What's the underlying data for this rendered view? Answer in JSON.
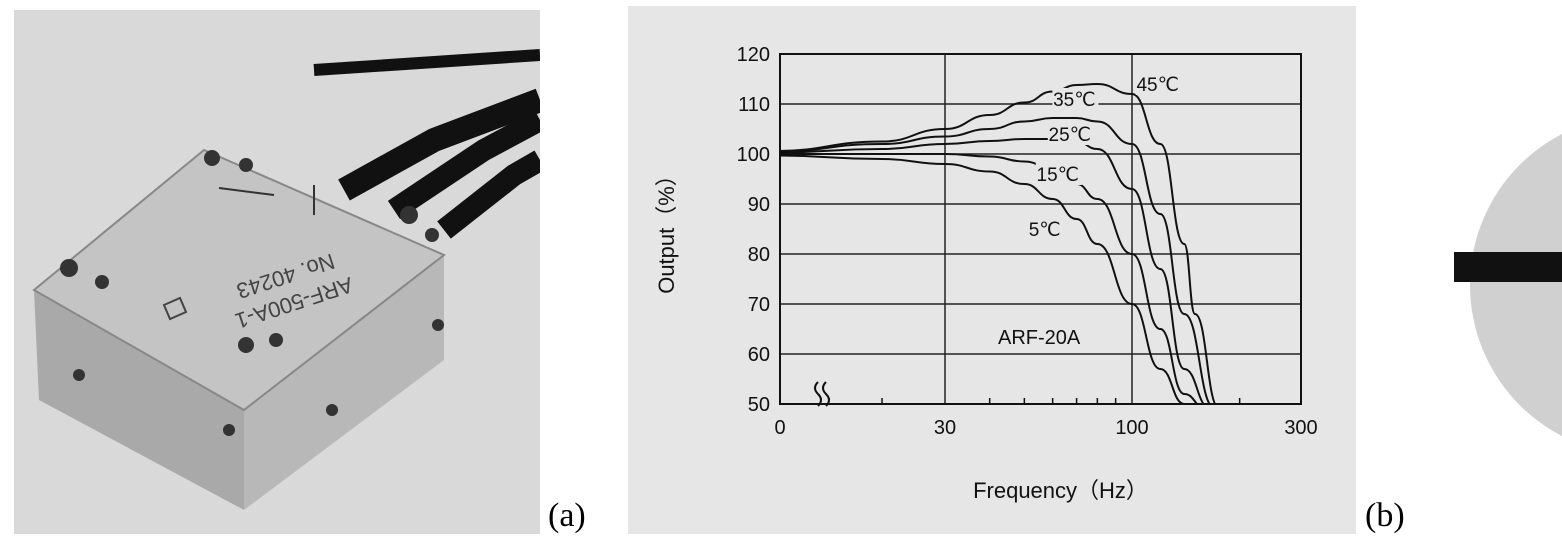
{
  "panels": {
    "a": {
      "label": "(a)",
      "device_text": [
        "ARF-500A-1",
        "No. 40243"
      ]
    },
    "b": {
      "label": "(b)"
    }
  },
  "chart_data": {
    "type": "line",
    "xlabel": "Frequency（Hz）",
    "ylabel": "Output（%）",
    "x_ticks": [
      "0",
      "30",
      "100",
      "300"
    ],
    "y_ticks": [
      "50",
      "60",
      "70",
      "80",
      "90",
      "100",
      "110",
      "120"
    ],
    "ylim": [
      50,
      120
    ],
    "x_scale": "log (axis break after 0)",
    "grid": true,
    "annotation": "ARF-20A",
    "series": [
      {
        "name": "5℃",
        "x": [
          0,
          10,
          20,
          30,
          40,
          50,
          60,
          70,
          80,
          100,
          120,
          140,
          150
        ],
        "y": [
          100,
          99.7,
          99,
          98,
          96.5,
          94,
          91,
          87,
          82,
          70,
          57,
          50,
          48
        ]
      },
      {
        "name": "15℃",
        "x": [
          0,
          10,
          20,
          30,
          40,
          50,
          60,
          70,
          80,
          100,
          120,
          140,
          160
        ],
        "y": [
          100,
          100,
          100,
          100,
          99.5,
          98.5,
          97,
          94,
          91,
          80,
          65,
          52,
          48
        ]
      },
      {
        "name": "25℃",
        "x": [
          0,
          10,
          20,
          30,
          40,
          50,
          60,
          70,
          80,
          100,
          120,
          140,
          165
        ],
        "y": [
          100,
          100.3,
          101,
          102,
          102.6,
          103,
          103,
          102.5,
          101,
          93,
          77,
          57,
          48
        ]
      },
      {
        "name": "35℃",
        "x": [
          0,
          10,
          20,
          30,
          40,
          50,
          60,
          70,
          80,
          100,
          120,
          140,
          170
        ],
        "y": [
          100,
          100.5,
          102,
          103.5,
          105,
          106.5,
          107.2,
          107.2,
          106.5,
          102,
          88,
          68,
          48
        ]
      },
      {
        "name": "45℃",
        "x": [
          0,
          10,
          20,
          30,
          40,
          50,
          60,
          70,
          80,
          100,
          120,
          140,
          150,
          175
        ],
        "y": [
          100,
          100.6,
          102.5,
          105,
          107.8,
          110.3,
          112.5,
          113.8,
          114,
          112,
          102,
          82,
          68,
          48
        ]
      }
    ],
    "label_positions": {
      "5℃": {
        "x": 57,
        "y": 84
      },
      "15℃": {
        "x": 62,
        "y": 95
      },
      "25℃": {
        "x": 67,
        "y": 103
      },
      "35℃": {
        "x": 69,
        "y": 110
      },
      "45℃": {
        "x": 118,
        "y": 113
      }
    }
  }
}
